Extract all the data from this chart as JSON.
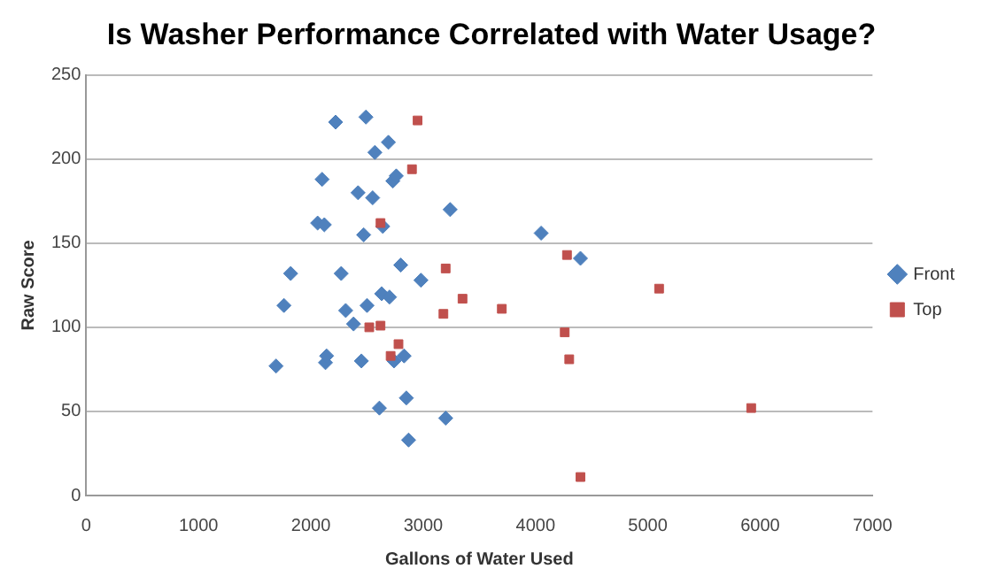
{
  "chart_data": {
    "type": "scatter",
    "title": "Is Washer Performance Correlated with Water Usage?",
    "xlabel": "Gallons of Water Used",
    "ylabel": "Raw Score",
    "xlim": [
      0,
      7000
    ],
    "xticks": [
      0,
      1000,
      2000,
      3000,
      4000,
      5000,
      6000,
      7000
    ],
    "ylim": [
      0,
      250
    ],
    "yticks": [
      0,
      50,
      100,
      150,
      200,
      250
    ],
    "grid": "y",
    "legend": "right",
    "series": [
      {
        "name": "Front",
        "color": "#4f81bd",
        "marker": "diamond",
        "x": [
          1690,
          1760,
          1820,
          2060,
          2100,
          2120,
          2130,
          2140,
          2220,
          2270,
          2310,
          2380,
          2420,
          2450,
          2470,
          2500,
          2490,
          2550,
          2570,
          2610,
          2630,
          2640,
          2690,
          2700,
          2730,
          2740,
          2760,
          2800,
          2830,
          2850,
          2870,
          2980,
          3200,
          3240,
          4050,
          4400
        ],
        "values": [
          77,
          113,
          132,
          162,
          188,
          161,
          79,
          83,
          222,
          132,
          110,
          102,
          180,
          80,
          155,
          113,
          225,
          177,
          204,
          52,
          120,
          160,
          210,
          118,
          187,
          80,
          190,
          137,
          83,
          58,
          33,
          128,
          46,
          170,
          156,
          141
        ]
      },
      {
        "name": "Top",
        "color": "#c0504d",
        "marker": "square",
        "x": [
          2950,
          2900,
          2620,
          3200,
          3350,
          3180,
          3700,
          2520,
          2620,
          2780,
          2710,
          4280,
          4260,
          4300,
          5100,
          5920,
          4400
        ],
        "values": [
          223,
          194,
          162,
          135,
          117,
          108,
          111,
          100,
          101,
          90,
          83,
          143,
          97,
          81,
          123,
          52,
          11
        ]
      }
    ]
  }
}
